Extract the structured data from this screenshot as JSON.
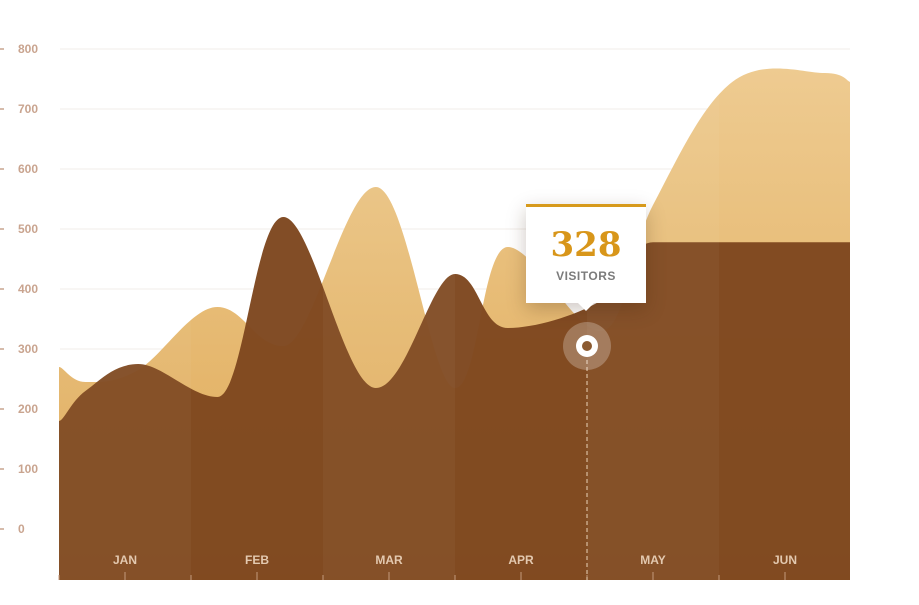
{
  "chart_data": {
    "type": "area",
    "categories": [
      "JAN",
      "FEB",
      "MAR",
      "APR",
      "MAY",
      "JUN"
    ],
    "y_ticks": [
      "0",
      "100",
      "200",
      "300",
      "400",
      "500",
      "600",
      "700",
      "800"
    ],
    "ylim": [
      0,
      800
    ],
    "x": [
      -0.5,
      -0.3,
      0.1,
      0.7,
      1.2,
      1.9,
      2.5,
      2.9,
      3.6,
      4.0,
      4.6,
      5.3,
      5.5
    ],
    "series": [
      {
        "color": "#e8c07c",
        "values": [
          270,
          245,
          265,
          370,
          305,
          570,
          235,
          470,
          330,
          540,
          745,
          760,
          745
        ]
      },
      {
        "color": "#7e471f",
        "values": [
          180,
          230,
          275,
          220,
          520,
          235,
          425,
          335,
          380,
          478,
          478,
          478,
          478
        ]
      }
    ],
    "colors": {
      "light_area": "#e8c07c",
      "dark_area": "#7e471f",
      "accent": "#d8961a"
    },
    "tooltip": {
      "value": "328",
      "label": "VISITORS",
      "x_position": 3.5,
      "y": 305
    },
    "grid": true
  }
}
